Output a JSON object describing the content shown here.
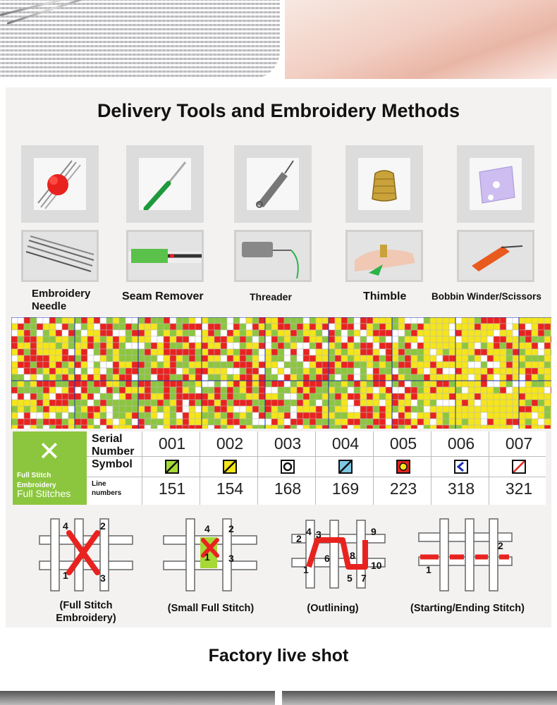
{
  "main_title": "Delivery Tools and Embroidery Methods",
  "tools": [
    {
      "label_line1": "Embroidery",
      "label_line2": "Needle",
      "icon": "needles-pompom-icon"
    },
    {
      "label_line1": "Seam Remover",
      "label_line2": "",
      "icon": "seam-ripper-icon"
    },
    {
      "label_line1": "Threader",
      "label_line2": "",
      "icon": "needle-threader-icon"
    },
    {
      "label_line1": "Thimble",
      "label_line2": "",
      "icon": "thimble-icon"
    },
    {
      "label_line1": "Bobbin Winder/Scissors",
      "label_line2": "",
      "icon": "bobbin-card-icon"
    }
  ],
  "legend": {
    "badge_line1": "Full Stitch",
    "badge_line2": "Embroidery",
    "badge_line3": "Full Stitches",
    "row_serial_1": "Serial",
    "row_serial_2": "Number",
    "row_symbol": "Symbol",
    "row_line_1": "Line",
    "row_line_2": "numbers",
    "serials": [
      "001",
      "002",
      "003",
      "004",
      "005",
      "006",
      "007"
    ],
    "line_numbers": [
      "151",
      "154",
      "168",
      "169",
      "223",
      "318",
      "321"
    ],
    "symbol_colors": [
      "#a6d936",
      "#f5e51a",
      "#ffffff",
      "#7ec8e3",
      "#e8231f",
      "#ffffff",
      "#ffffff"
    ]
  },
  "stitches": [
    {
      "caption_line1": "(Full Stitch",
      "caption_line2": "Embroidery)",
      "numbers": [
        "4",
        "2",
        "1",
        "3"
      ]
    },
    {
      "caption_line1": "(Small Full Stitch)",
      "caption_line2": "",
      "numbers": [
        "4",
        "2",
        "1",
        "3"
      ]
    },
    {
      "caption_line1": "(Outlining)",
      "caption_line2": "",
      "numbers": [
        "2",
        "4",
        "3",
        "9",
        "6",
        "8",
        "1",
        "5",
        "7",
        "10"
      ]
    },
    {
      "caption_line1": "(Starting/Ending Stitch)",
      "caption_line2": "",
      "numbers": [
        "2",
        "1"
      ]
    }
  ],
  "factory_title": "Factory live shot",
  "colors": {
    "green": "#8cc63e",
    "red": "#e8231f",
    "yellow": "#f5e51a",
    "panel": "#f4f2f1"
  }
}
